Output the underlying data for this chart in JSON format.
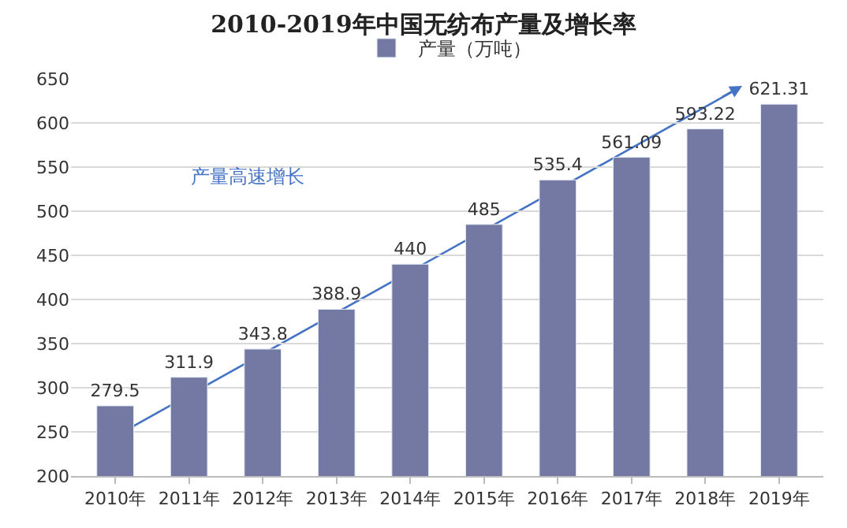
{
  "chart_data": {
    "type": "bar",
    "title": "2010-2019年中国无纺布产量及增长率",
    "categories": [
      "2010年",
      "2011年",
      "2012年",
      "2013年",
      "2014年",
      "2015年",
      "2016年",
      "2017年",
      "2018年",
      "2019年"
    ],
    "series": [
      {
        "name": "产量（万吨）",
        "color": "#7379a3",
        "values": [
          279.5,
          311.9,
          343.8,
          388.9,
          440,
          485,
          535.4,
          561.09,
          593.22,
          621.31
        ]
      }
    ],
    "ylim": [
      200,
      650
    ],
    "yticks": [
      200,
      250,
      300,
      350,
      400,
      450,
      500,
      550,
      600,
      650
    ],
    "grid": "y",
    "legend": "top",
    "data_labels": true,
    "annotations": [
      "产量高速增长"
    ]
  }
}
